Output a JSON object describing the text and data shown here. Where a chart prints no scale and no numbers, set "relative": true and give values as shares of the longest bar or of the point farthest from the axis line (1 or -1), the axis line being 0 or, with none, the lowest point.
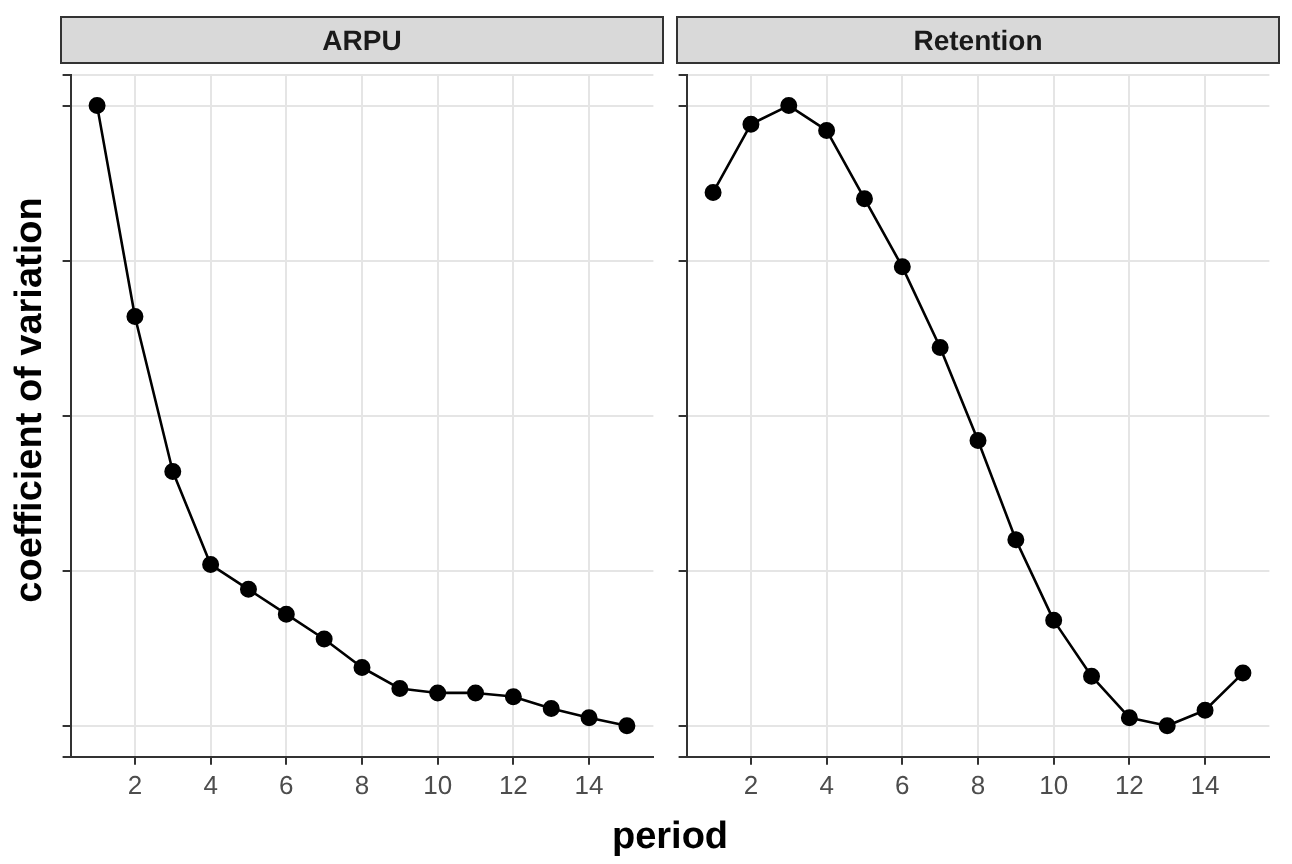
{
  "chart_data": [
    {
      "type": "line",
      "title": "ARPU",
      "xlabel": "period",
      "ylabel": "coefficient of variation",
      "relative": true,
      "x": [
        1,
        2,
        3,
        4,
        5,
        6,
        7,
        8,
        9,
        10,
        11,
        12,
        13,
        14,
        15
      ],
      "series": [
        {
          "color": "#000000",
          "values": [
            1,
            0.66,
            0.41,
            0.26,
            0.22,
            0.18,
            0.14,
            0.094,
            0.06,
            0.053,
            0.053,
            0.047,
            0.028,
            0.013,
            0
          ]
        }
      ],
      "xlim": [
        0.3,
        15.7
      ],
      "xticks": [
        2,
        4,
        6,
        8,
        10,
        12,
        14
      ],
      "tick_labels": "x",
      "grid": true,
      "marker": "circle",
      "line_style": "solid",
      "legend": false
    },
    {
      "type": "line",
      "title": "Retention",
      "relative": true,
      "x": [
        1,
        2,
        3,
        4,
        5,
        6,
        7,
        8,
        9,
        10,
        11,
        12,
        13,
        14,
        15
      ],
      "series": [
        {
          "color": "#000000",
          "values": [
            0.86,
            0.97,
            1,
            0.96,
            0.85,
            0.74,
            0.61,
            0.46,
            0.3,
            0.17,
            0.08,
            0.013,
            0,
            0.025,
            0.085
          ]
        }
      ],
      "xlim": [
        0.3,
        15.7
      ],
      "xticks": [
        2,
        4,
        6,
        8,
        10,
        12,
        14
      ],
      "tick_labels": "x",
      "grid": true,
      "marker": "circle",
      "line_style": "solid",
      "legend": false
    }
  ]
}
